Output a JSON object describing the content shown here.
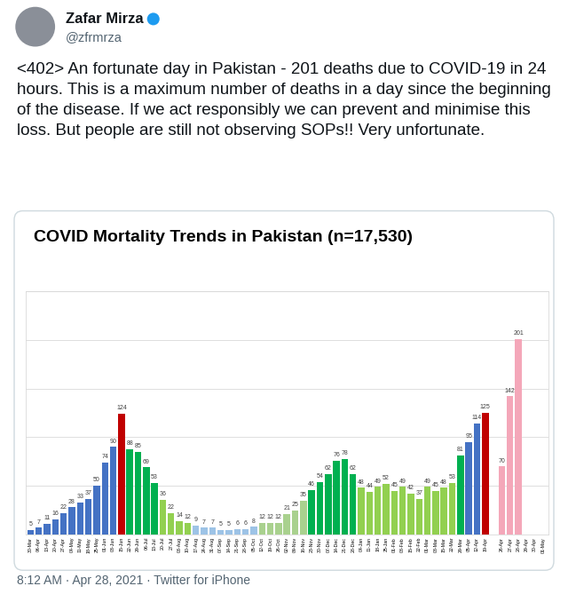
{
  "tweet": {
    "name": "Zafar Mirza",
    "handle": "@zfrmrza",
    "text": "<402> An fortunate day in Pakistan - 201 deaths due to COVID-19 in 24 hours. This is a maximum number of deaths in a day since the beginning of the disease. If we act responsibly we can prevent and minimise this loss. But people are still not observing SOPs!! Very unfortunate.",
    "footer": "8:12 AM · Apr 28, 2021 · Twitter for iPhone"
  },
  "chart_data": {
    "type": "bar",
    "title": "COVID Mortality Trends in Pakistan (n=17,530)",
    "categories": [
      "30-Mar",
      "06-Apr",
      "13-Apr",
      "20-Apr",
      "27-Apr",
      "04-May",
      "11-May",
      "18-May",
      "25-May",
      "01-Jun",
      "08-Jun",
      "15-Jun",
      "22-Jun",
      "29-Jun",
      "06-Jul",
      "13-Jul",
      "20-Jul",
      "27-Jul",
      "03-Aug",
      "10-Aug",
      "17-Aug",
      "24-Aug",
      "31-Aug",
      "07-Sep",
      "14-Sep",
      "21-Sep",
      "28-Sep",
      "05-Oct",
      "12-Oct",
      "19-Oct",
      "26-Oct",
      "02-Nov",
      "09-Nov",
      "16-Nov",
      "23-Nov",
      "30-Nov",
      "07-Dec",
      "14-Dec",
      "21-Dec",
      "28-Dec",
      "04-Jan",
      "11-Jan",
      "18-Jan",
      "25-Jan",
      "01-Feb",
      "08-Feb",
      "15-Feb",
      "22-Feb",
      "01-Mar",
      "08-Mar",
      "15-Mar",
      "22-Mar",
      "29-Mar",
      "05-Apr",
      "12-Apr",
      "19-Apr",
      null,
      "26-Apr",
      "27-Apr",
      "28-Apr",
      "29-Apr",
      "30-Apr",
      "01-May"
    ],
    "values": [
      5,
      7,
      11,
      16,
      22,
      28,
      33,
      37,
      50,
      74,
      90,
      124,
      88,
      85,
      69,
      53,
      36,
      22,
      14,
      12,
      9,
      7,
      7,
      5,
      5,
      6,
      6,
      8,
      12,
      12,
      12,
      21,
      25,
      35,
      46,
      54,
      62,
      76,
      78,
      62,
      48,
      44,
      49,
      52,
      45,
      49,
      42,
      37,
      49,
      45,
      48,
      53,
      81,
      95,
      114,
      125,
      null,
      70,
      142,
      201,
      null,
      null,
      null
    ],
    "colors": [
      "#4472c4",
      "#4472c4",
      "#4472c4",
      "#4472c4",
      "#4472c4",
      "#4472c4",
      "#4472c4",
      "#4472c4",
      "#4472c4",
      "#4472c4",
      "#4472c4",
      "#c00000",
      "#00b050",
      "#00b050",
      "#00b050",
      "#00b050",
      "#92d050",
      "#92d050",
      "#92d050",
      "#92d050",
      "#9dc3e6",
      "#9dc3e6",
      "#9dc3e6",
      "#9dc3e6",
      "#9dc3e6",
      "#9dc3e6",
      "#9dc3e6",
      "#9dc3e6",
      "#a9d18e",
      "#a9d18e",
      "#a9d18e",
      "#a9d18e",
      "#a9d18e",
      "#a9d18e",
      "#00b050",
      "#00b050",
      "#00b050",
      "#00b050",
      "#00b050",
      "#00b050",
      "#92d050",
      "#92d050",
      "#92d050",
      "#92d050",
      "#92d050",
      "#92d050",
      "#92d050",
      "#92d050",
      "#92d050",
      "#92d050",
      "#92d050",
      "#92d050",
      "#00b050",
      "#4472c4",
      "#4472c4",
      "#c00000",
      null,
      "#f4a7b9",
      "#f4a7b9",
      "#f4a7b9",
      null,
      null,
      null
    ],
    "ylim": [
      0,
      250
    ],
    "yticks": [
      0,
      50,
      100,
      150,
      200,
      250
    ],
    "grid": true,
    "data_labels": true,
    "tick_labels": "x"
  }
}
